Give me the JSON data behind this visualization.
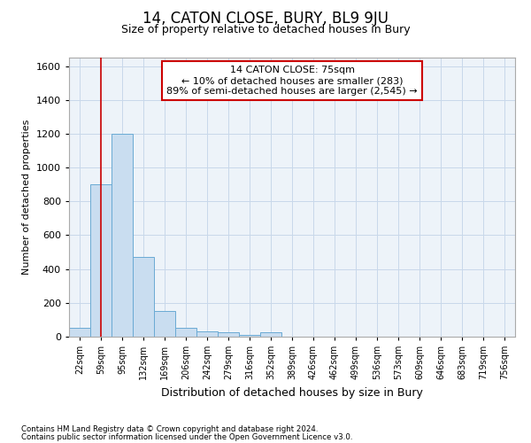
{
  "title": "14, CATON CLOSE, BURY, BL9 9JU",
  "subtitle": "Size of property relative to detached houses in Bury",
  "xlabel": "Distribution of detached houses by size in Bury",
  "ylabel": "Number of detached properties",
  "categories": [
    "22sqm",
    "59sqm",
    "95sqm",
    "132sqm",
    "169sqm",
    "206sqm",
    "242sqm",
    "279sqm",
    "316sqm",
    "352sqm",
    "389sqm",
    "426sqm",
    "462sqm",
    "499sqm",
    "536sqm",
    "573sqm",
    "609sqm",
    "646sqm",
    "683sqm",
    "719sqm",
    "756sqm"
  ],
  "values": [
    55,
    900,
    1200,
    470,
    150,
    55,
    30,
    25,
    10,
    25,
    0,
    0,
    0,
    0,
    0,
    0,
    0,
    0,
    0,
    0,
    0
  ],
  "bar_color": "#c9ddf0",
  "bar_edge_color": "#6aaad4",
  "red_line_index": 1,
  "ann_line1": "14 CATON CLOSE: 75sqm",
  "ann_line2": "← 10% of detached houses are smaller (283)",
  "ann_line3": "89% of semi-detached houses are larger (2,545) →",
  "ann_box_facecolor": "#ffffff",
  "ann_box_edgecolor": "#cc0000",
  "ylim_max": 1650,
  "yticks": [
    0,
    200,
    400,
    600,
    800,
    1000,
    1200,
    1400,
    1600
  ],
  "grid_color": "#c8d8ea",
  "plot_bg": "#edf3f9",
  "title_fontsize": 12,
  "subtitle_fontsize": 9,
  "footer1": "Contains HM Land Registry data © Crown copyright and database right 2024.",
  "footer2": "Contains public sector information licensed under the Open Government Licence v3.0."
}
